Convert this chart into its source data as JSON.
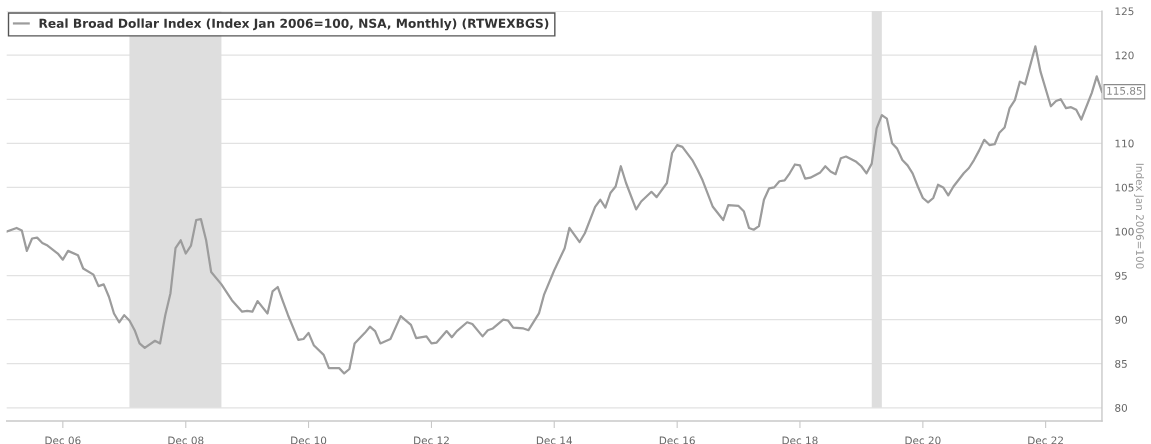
{
  "chart_data": {
    "type": "line",
    "x": [
      "2006-01",
      "2006-03",
      "2006-04",
      "2006-05",
      "2006-06",
      "2006-07",
      "2006-08",
      "2006-09",
      "2006-11",
      "2006-12",
      "2007-01",
      "2007-03",
      "2007-04",
      "2007-06",
      "2007-07",
      "2007-08",
      "2007-09",
      "2007-10",
      "2007-11",
      "2007-12",
      "2008-01",
      "2008-02",
      "2008-03",
      "2008-04",
      "2008-06",
      "2008-07",
      "2008-08",
      "2008-09",
      "2008-10",
      "2008-11",
      "2008-12",
      "2009-01",
      "2009-02",
      "2009-03",
      "2009-04",
      "2009-05",
      "2009-07",
      "2009-09",
      "2009-11",
      "2009-12",
      "2010-01",
      "2010-02",
      "2010-04",
      "2010-05",
      "2010-06",
      "2010-07",
      "2010-08",
      "2010-10",
      "2010-11",
      "2010-12",
      "2011-01",
      "2011-03",
      "2011-04",
      "2011-06",
      "2011-07",
      "2011-08",
      "2011-09",
      "2011-11",
      "2011-12",
      "2012-01",
      "2012-02",
      "2012-04",
      "2012-06",
      "2012-08",
      "2012-09",
      "2012-11",
      "2012-12",
      "2013-01",
      "2013-03",
      "2013-04",
      "2013-05",
      "2013-07",
      "2013-08",
      "2013-10",
      "2013-11",
      "2013-12",
      "2014-02",
      "2014-03",
      "2014-04",
      "2014-06",
      "2014-07",
      "2014-09",
      "2014-10",
      "2014-12",
      "2015-02",
      "2015-03",
      "2015-05",
      "2015-06",
      "2015-08",
      "2015-09",
      "2015-10",
      "2015-11",
      "2015-12",
      "2016-01",
      "2016-02",
      "2016-04",
      "2016-05",
      "2016-07",
      "2016-08",
      "2016-10",
      "2016-11",
      "2016-12",
      "2017-01",
      "2017-03",
      "2017-04",
      "2017-05",
      "2017-07",
      "2017-09",
      "2017-10",
      "2017-12",
      "2018-01",
      "2018-02",
      "2018-03",
      "2018-04",
      "2018-05",
      "2018-06",
      "2018-07",
      "2018-08",
      "2018-09",
      "2018-10",
      "2018-11",
      "2018-12",
      "2019-01",
      "2019-02",
      "2019-04",
      "2019-05",
      "2019-06",
      "2019-07",
      "2019-08",
      "2019-09",
      "2019-11",
      "2019-12",
      "2020-01",
      "2020-02",
      "2020-03",
      "2020-04",
      "2020-05",
      "2020-06",
      "2020-07",
      "2020-08",
      "2020-09",
      "2020-10",
      "2020-11",
      "2020-12",
      "2021-01",
      "2021-02",
      "2021-03",
      "2021-04",
      "2021-05",
      "2021-06",
      "2021-08",
      "2021-09",
      "2021-10",
      "2021-11",
      "2021-12",
      "2022-01",
      "2022-02",
      "2022-03",
      "2022-04",
      "2022-05",
      "2022-06",
      "2022-07",
      "2022-08",
      "2022-10",
      "2022-11",
      "2023-01",
      "2023-02",
      "2023-03",
      "2023-04",
      "2023-05",
      "2023-06",
      "2023-07",
      "2023-09",
      "2023-10",
      "2023-11"
    ],
    "series": [
      {
        "name": "Real Broad Dollar Index (Index Jan 2006=100, NSA, Monthly) (RTWEXBGS)",
        "color": "#9c9c9c",
        "values": [
          100.0,
          100.4,
          100.1,
          97.8,
          99.2,
          99.3,
          98.7,
          98.4,
          97.5,
          96.8,
          97.8,
          97.3,
          95.8,
          95.1,
          93.8,
          94.0,
          92.6,
          90.7,
          89.7,
          90.5,
          89.9,
          88.8,
          87.3,
          86.8,
          87.6,
          87.3,
          90.5,
          93.0,
          98.1,
          99.0,
          97.5,
          98.4,
          101.3,
          101.4,
          99.0,
          95.4,
          94.0,
          92.2,
          90.9,
          91.0,
          90.9,
          92.1,
          90.7,
          93.2,
          93.7,
          92.1,
          90.5,
          87.7,
          87.8,
          88.5,
          87.1,
          86.0,
          84.5,
          84.5,
          83.9,
          84.4,
          87.3,
          88.5,
          89.2,
          88.7,
          87.3,
          87.8,
          90.4,
          89.4,
          87.9,
          88.1,
          87.3,
          87.4,
          88.7,
          88.0,
          88.7,
          89.7,
          89.5,
          88.1,
          88.8,
          89.0,
          90.0,
          89.9,
          89.1,
          89.0,
          88.8,
          90.7,
          92.8,
          95.6,
          98.1,
          100.4,
          98.8,
          99.8,
          102.8,
          103.6,
          102.7,
          104.4,
          105.1,
          107.4,
          105.5,
          102.5,
          103.4,
          104.5,
          103.9,
          105.5,
          108.9,
          109.8,
          109.6,
          108.1,
          107.0,
          105.8,
          102.8,
          101.3,
          103.0,
          102.9,
          102.3,
          100.4,
          100.2,
          100.6,
          103.6,
          104.9,
          105.0,
          105.7,
          105.8,
          106.6,
          107.6,
          107.5,
          106.0,
          106.1,
          106.7,
          107.4,
          106.8,
          106.5,
          108.3,
          108.5,
          107.9,
          107.4,
          106.6,
          107.7,
          111.7,
          113.2,
          112.8,
          110.0,
          109.4,
          108.1,
          107.5,
          106.6,
          105.1,
          103.8,
          103.3,
          103.8,
          105.3,
          105.0,
          104.1,
          105.1,
          106.6,
          107.2,
          108.1,
          109.2,
          110.4,
          109.8,
          109.9,
          111.2,
          111.8,
          114.0,
          114.9,
          117.0,
          116.7,
          121.0,
          118.1,
          114.2,
          114.8,
          115.0,
          114.0,
          114.1,
          113.8,
          112.7,
          115.7,
          117.6,
          115.85
        ]
      }
    ],
    "ylabel": "Index Jan 2006=100",
    "xlim": [
      "2006-01",
      "2023-11"
    ],
    "xticks": [
      {
        "value": "2006-12",
        "label": "Dec 06"
      },
      {
        "value": "2008-12",
        "label": "Dec 08"
      },
      {
        "value": "2010-12",
        "label": "Dec 10"
      },
      {
        "value": "2012-12",
        "label": "Dec 12"
      },
      {
        "value": "2014-12",
        "label": "Dec 14"
      },
      {
        "value": "2016-12",
        "label": "Dec 16"
      },
      {
        "value": "2018-12",
        "label": "Dec 18"
      },
      {
        "value": "2020-12",
        "label": "Dec 20"
      },
      {
        "value": "2022-12",
        "label": "Dec 22"
      }
    ],
    "ylim": [
      78.5,
      125
    ],
    "yticks": [
      80,
      85,
      90,
      95,
      100,
      105,
      110,
      {
        "value": 115,
        "label": null
      },
      120,
      125
    ],
    "grid": "y",
    "legend": "top left",
    "line_style": "solid",
    "bands": [
      {
        "axis": "x",
        "from": "2008-01",
        "to": "2009-07",
        "color": "#dedede"
      },
      {
        "axis": "x",
        "from": "2020-02",
        "to": "2020-04",
        "color": "#dedede"
      }
    ],
    "annotations": [
      {
        "text": "115.85",
        "x": "2023-11",
        "y": 115.85
      }
    ]
  }
}
